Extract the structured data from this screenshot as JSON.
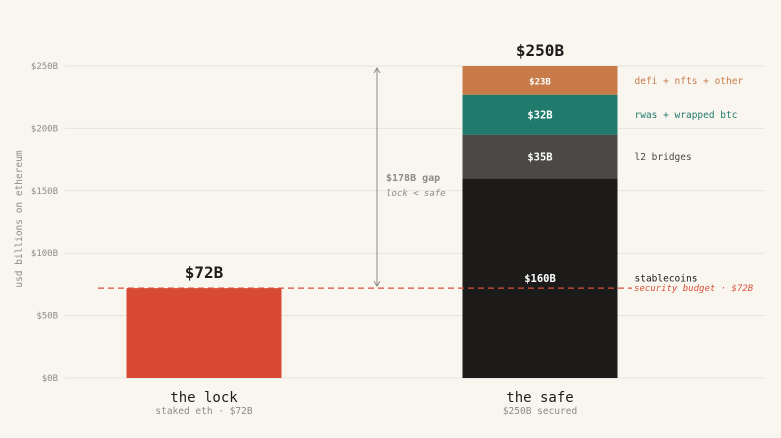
{
  "chart_data": {
    "type": "bar",
    "ylabel": "usd billions on ethereum",
    "ylim": [
      0,
      250
    ],
    "yticks": [
      {
        "value": 0,
        "label": "$0B"
      },
      {
        "value": 50,
        "label": "$50B"
      },
      {
        "value": 100,
        "label": "$100B"
      },
      {
        "value": 150,
        "label": "$150B"
      },
      {
        "value": 200,
        "label": "$200B"
      },
      {
        "value": 250,
        "label": "$250B"
      }
    ],
    "grid": true,
    "bars": [
      {
        "category": "the lock",
        "sublabel": "staked eth · $72B",
        "total_label": "$72B",
        "segments": [
          {
            "value": 72,
            "label": "",
            "side_label": "",
            "color": "#d94a35"
          }
        ]
      },
      {
        "category": "the safe",
        "sublabel": "$250B secured",
        "total_label": "$250B",
        "segments": [
          {
            "value": 160,
            "label": "$160B",
            "side_label": "stablecoins",
            "color": "#1c1b19",
            "side_color": "#1c1b19"
          },
          {
            "value": 35,
            "label": "$35B",
            "side_label": "l2 bridges",
            "color": "#4a4945",
            "side_color": "#4a4945"
          },
          {
            "value": 32,
            "label": "$32B",
            "side_label": "rwas + wrapped btc",
            "color": "#207b6c",
            "side_color": "#207b6c"
          },
          {
            "value": 23,
            "label": "$23B",
            "side_label": "defi + nfts + other",
            "color": "#c87a49",
            "side_color": "#c87a49"
          }
        ]
      }
    ],
    "reference_line": {
      "value": 72,
      "label": "security budget · $72B",
      "color": "#d9503a"
    },
    "gap_annotation": {
      "from": 72,
      "to": 250,
      "title": "$178B gap",
      "subtitle": "lock < safe"
    }
  }
}
